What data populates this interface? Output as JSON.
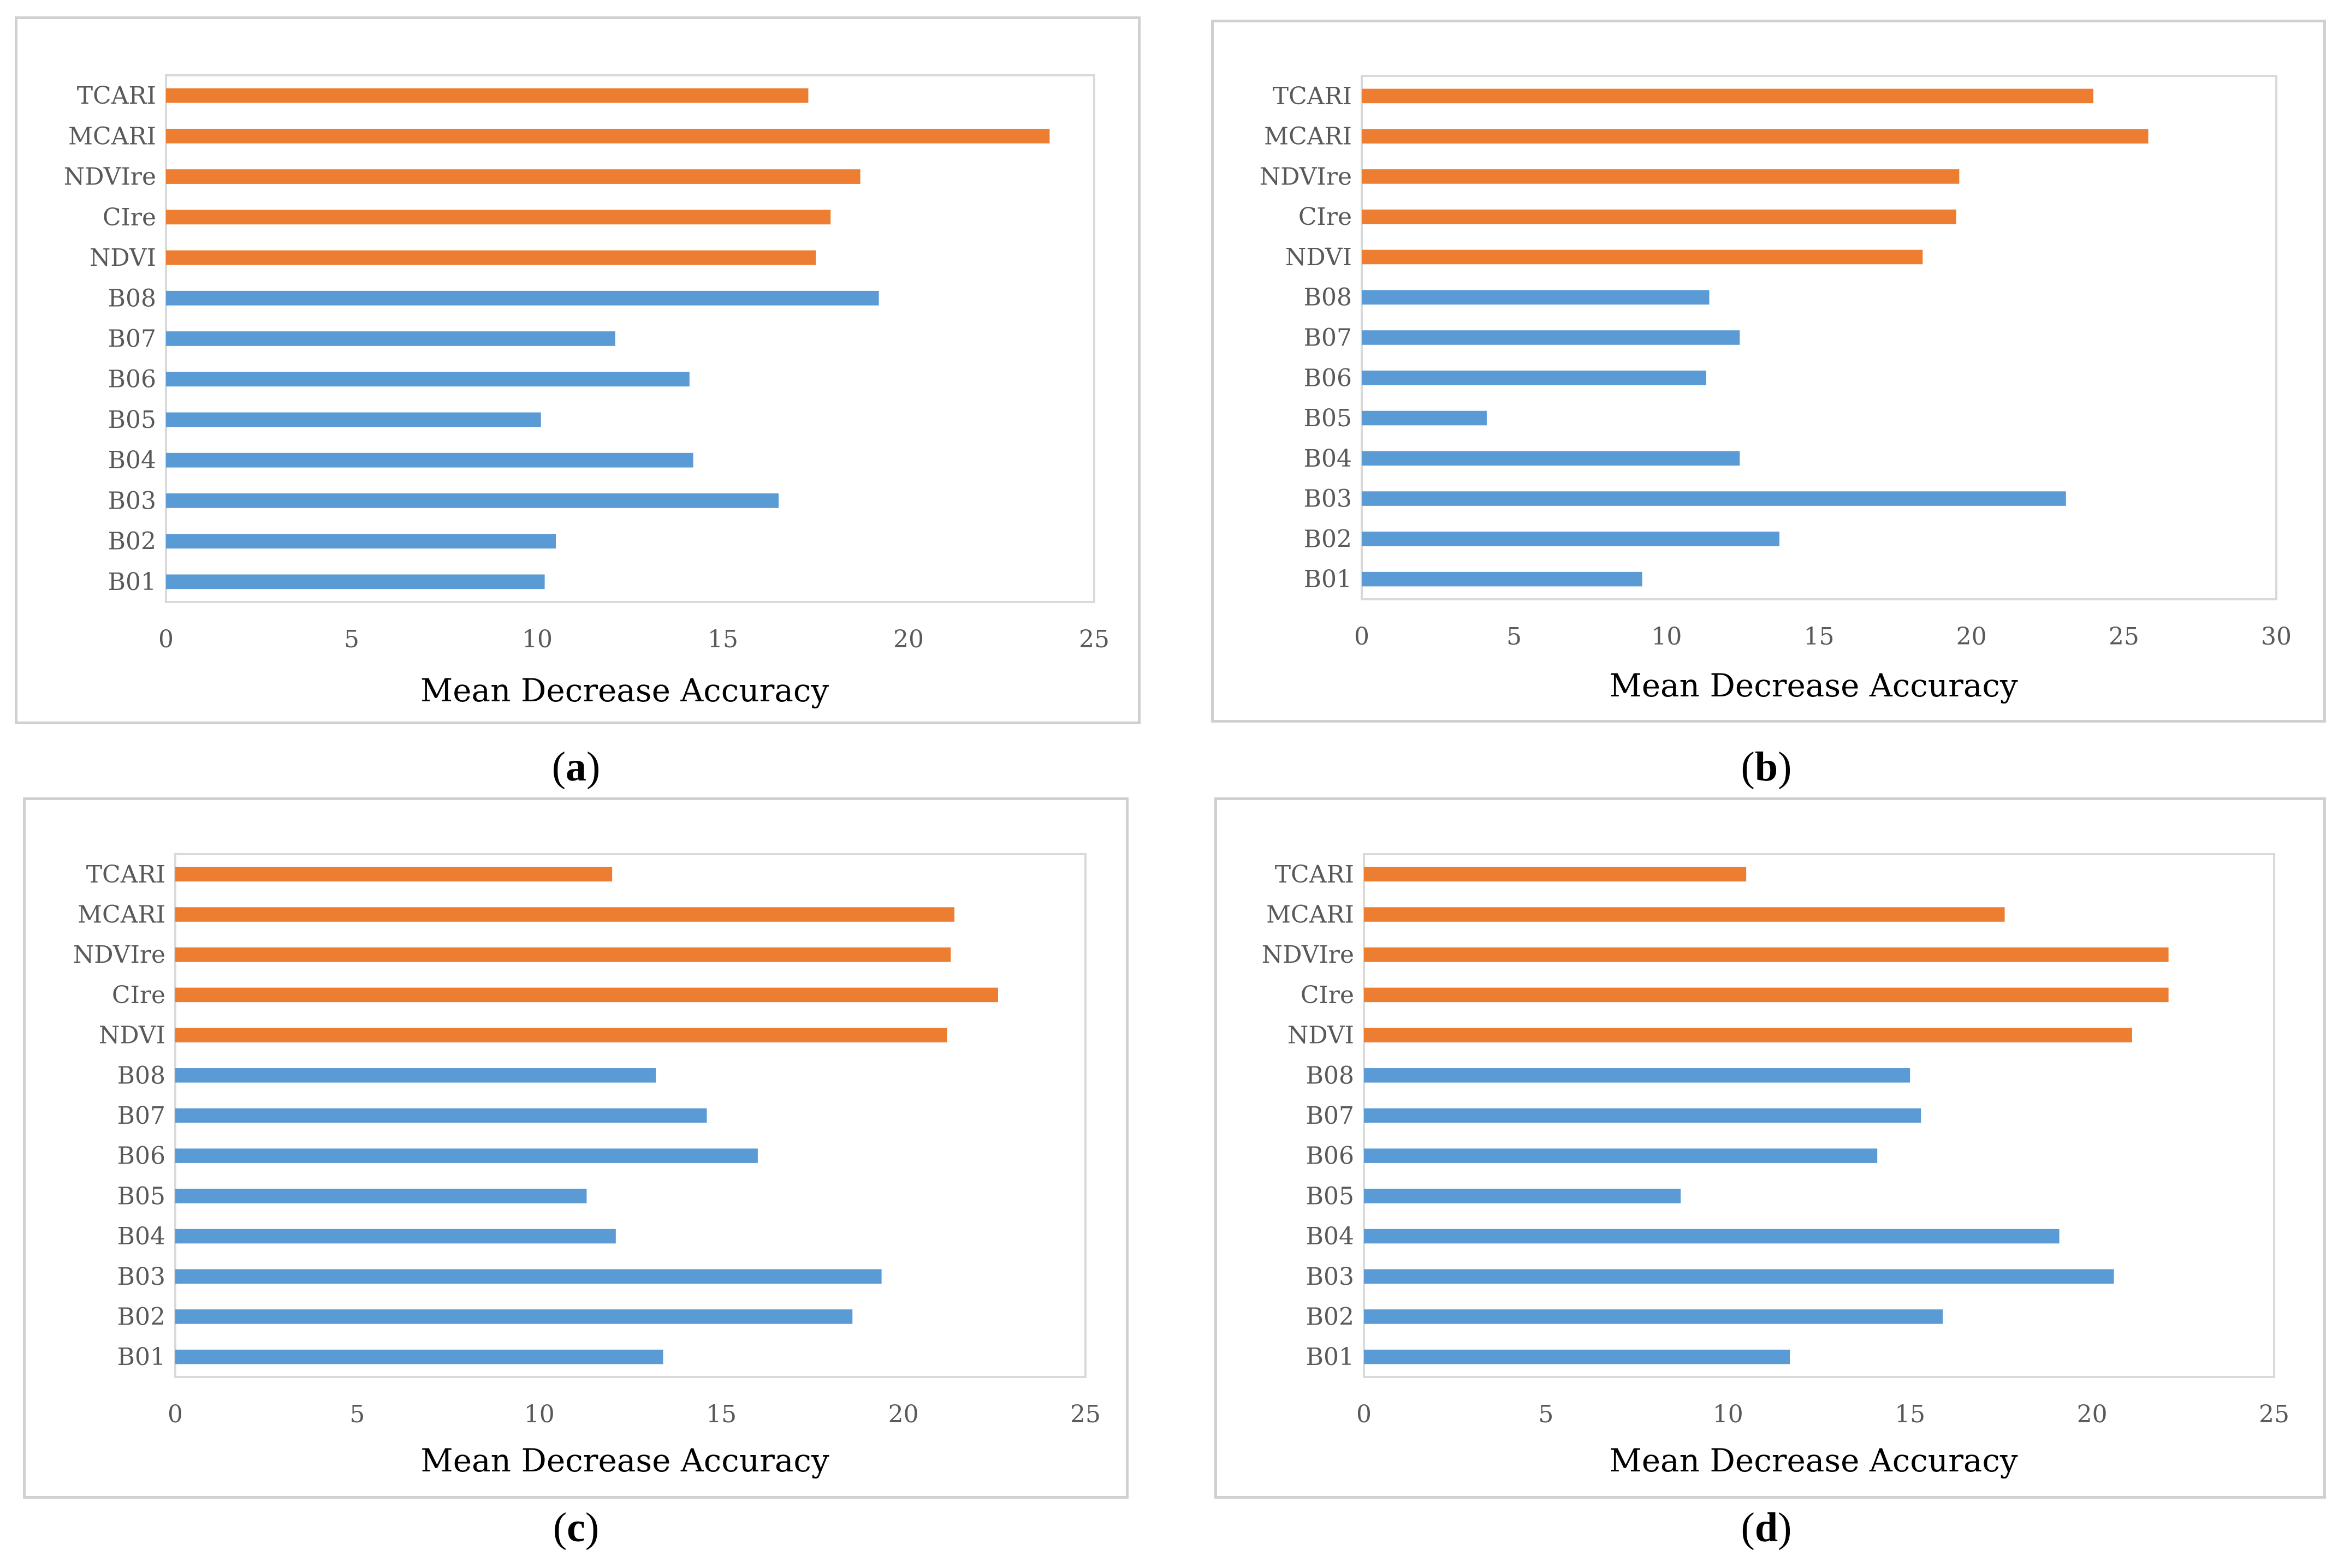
{
  "colors": {
    "bands": "#5b9bd5",
    "indices": "#ed7d31",
    "axis": "#d9d9d9",
    "text": "#595959"
  },
  "chart_data": [
    {
      "type": "bar",
      "orientation": "horizontal",
      "panel": "a",
      "caption_open": "(",
      "caption_letter": "a",
      "caption_close": ")",
      "categories": [
        "TCARI",
        "MCARI",
        "NDVIre",
        "CIre",
        "NDVI",
        "B08",
        "B07",
        "B06",
        "B05",
        "B04",
        "B03",
        "B02",
        "B01"
      ],
      "values": [
        17.3,
        23.8,
        18.7,
        17.9,
        17.5,
        19.2,
        12.1,
        14.1,
        10.1,
        14.2,
        16.5,
        10.5,
        10.2
      ],
      "groups": [
        "index",
        "index",
        "index",
        "index",
        "index",
        "band",
        "band",
        "band",
        "band",
        "band",
        "band",
        "band",
        "band"
      ],
      "xticks": [
        0,
        5,
        10,
        15,
        20,
        25
      ],
      "xlim": [
        0,
        25
      ],
      "xlabel": "Mean Decrease Accuracy"
    },
    {
      "type": "bar",
      "orientation": "horizontal",
      "panel": "b",
      "caption_open": "(",
      "caption_letter": "b",
      "caption_close": ")",
      "categories": [
        "TCARI",
        "MCARI",
        "NDVIre",
        "CIre",
        "NDVI",
        "B08",
        "B07",
        "B06",
        "B05",
        "B04",
        "B03",
        "B02",
        "B01"
      ],
      "values": [
        24.0,
        25.8,
        19.6,
        19.5,
        18.4,
        11.4,
        12.4,
        11.3,
        4.1,
        12.4,
        23.1,
        13.7,
        9.2
      ],
      "groups": [
        "index",
        "index",
        "index",
        "index",
        "index",
        "band",
        "band",
        "band",
        "band",
        "band",
        "band",
        "band",
        "band"
      ],
      "xticks": [
        0,
        5,
        10,
        15,
        20,
        25,
        30
      ],
      "xlim": [
        0,
        30
      ],
      "xlabel": "Mean Decrease Accuracy"
    },
    {
      "type": "bar",
      "orientation": "horizontal",
      "panel": "c",
      "caption_open": "(",
      "caption_letter": "c",
      "caption_close": ")",
      "categories": [
        "TCARI",
        "MCARI",
        "NDVIre",
        "CIre",
        "NDVI",
        "B08",
        "B07",
        "B06",
        "B05",
        "B04",
        "B03",
        "B02",
        "B01"
      ],
      "values": [
        12.0,
        21.4,
        21.3,
        22.6,
        21.2,
        13.2,
        14.6,
        16.0,
        11.3,
        12.1,
        19.4,
        18.6,
        13.4
      ],
      "groups": [
        "index",
        "index",
        "index",
        "index",
        "index",
        "band",
        "band",
        "band",
        "band",
        "band",
        "band",
        "band",
        "band"
      ],
      "xticks": [
        0,
        5,
        10,
        15,
        20,
        25
      ],
      "xlim": [
        0,
        25
      ],
      "xlabel": "Mean Decrease Accuracy"
    },
    {
      "type": "bar",
      "orientation": "horizontal",
      "panel": "d",
      "caption_open": "(",
      "caption_letter": "d",
      "caption_close": ")",
      "categories": [
        "TCARI",
        "MCARI",
        "NDVIre",
        "CIre",
        "NDVI",
        "B08",
        "B07",
        "B06",
        "B05",
        "B04",
        "B03",
        "B02",
        "B01"
      ],
      "values": [
        10.5,
        17.6,
        22.1,
        22.1,
        21.1,
        15.0,
        15.3,
        14.1,
        8.7,
        19.1,
        20.6,
        15.9,
        11.7
      ],
      "groups": [
        "index",
        "index",
        "index",
        "index",
        "index",
        "band",
        "band",
        "band",
        "band",
        "band",
        "band",
        "band",
        "band"
      ],
      "xticks": [
        0,
        5,
        10,
        15,
        20,
        25
      ],
      "xlim": [
        0,
        25
      ],
      "xlabel": "Mean Decrease Accuracy"
    }
  ]
}
